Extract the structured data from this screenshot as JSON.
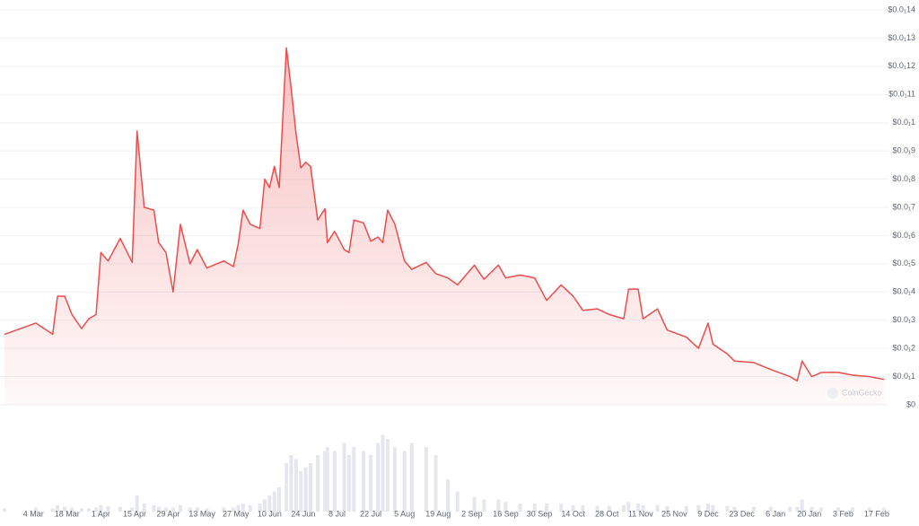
{
  "chart_data": {
    "type": "area",
    "watermark": "CoinGecko",
    "color": "#ec4c4c",
    "volume_color": "#e6e7ee",
    "grid": true,
    "xlim": [
      "21 Feb",
      "20 Feb"
    ],
    "ylim": [
      0,
      14
    ],
    "vlim": [
      0,
      100
    ],
    "yticks": [
      {
        "value": 14,
        "label": "$0.0₁14"
      },
      {
        "value": 13,
        "label": "$0.0₁13"
      },
      {
        "value": 12,
        "label": "$0.0₁12"
      },
      {
        "value": 11,
        "label": "$0.0₁11"
      },
      {
        "value": 10,
        "label": "$0.0₁1"
      },
      {
        "value": 9,
        "label": "$0.0₁9"
      },
      {
        "value": 8,
        "label": "$0.0₁8"
      },
      {
        "value": 7,
        "label": "$0.0₁7"
      },
      {
        "value": 6,
        "label": "$0.0₁6"
      },
      {
        "value": 5,
        "label": "$0.0₁5"
      },
      {
        "value": 4,
        "label": "$0.0₁4"
      },
      {
        "value": 3,
        "label": "$0.0₁3"
      },
      {
        "value": 2,
        "label": "$0.0₁2"
      },
      {
        "value": 1,
        "label": "$0.0₁1"
      },
      {
        "value": 0,
        "label": "$0"
      }
    ],
    "xticks": [
      "4 Mar",
      "18 Mar",
      "1 Apr",
      "15 Apr",
      "29 Apr",
      "13 May",
      "27 May",
      "10 Jun",
      "24 Jun",
      "8 Jul",
      "22 Jul",
      "5 Aug",
      "19 Aug",
      "2 Sep",
      "16 Sep",
      "30 Sep",
      "14 Oct",
      "28 Oct",
      "11 Nov",
      "25 Nov",
      "9 Dec",
      "23 Dec",
      "6 Jan",
      "20 Jan",
      "3 Feb",
      "17 Feb"
    ],
    "x": [
      "21 Feb",
      "5 Mar",
      "12 Mar",
      "14 Mar",
      "17 Mar",
      "20 Mar",
      "24 Mar",
      "27 Mar",
      "30 Mar",
      "1 Apr",
      "4 Apr",
      "9 Apr",
      "14 Apr",
      "16 Apr",
      "19 Apr",
      "23 Apr",
      "25 Apr",
      "28 Apr",
      "1 May",
      "4 May",
      "8 May",
      "11 May",
      "15 May",
      "22 May",
      "26 May",
      "28 May",
      "30 May",
      "2 Jun",
      "6 Jun",
      "8 Jun",
      "10 Jun",
      "12 Jun",
      "14 Jun",
      "17 Jun",
      "19 Jun",
      "21 Jun",
      "23 Jun",
      "25 Jun",
      "27 Jun",
      "30 Jun",
      "3 Jul",
      "4 Jul",
      "7 Jul",
      "11 Jul",
      "13 Jul",
      "15 Jul",
      "19 Jul",
      "22 Jul",
      "25 Jul",
      "27 Jul",
      "29 Jul",
      "1 Aug",
      "5 Aug",
      "8 Aug",
      "14 Aug",
      "18 Aug",
      "23 Aug",
      "27 Aug",
      "3 Sep",
      "7 Sep",
      "13 Sep",
      "16 Sep",
      "22 Sep",
      "28 Sep",
      "3 Oct",
      "9 Oct",
      "14 Oct",
      "18 Oct",
      "24 Oct",
      "29 Oct",
      "4 Nov",
      "6 Nov",
      "10 Nov",
      "12 Nov",
      "18 Nov",
      "22 Nov",
      "30 Nov",
      "5 Dec",
      "9 Dec",
      "11 Dec",
      "17 Dec",
      "20 Dec",
      "28 Dec",
      "4 Jan",
      "12 Jan",
      "15 Jan",
      "17 Jan",
      "21 Jan",
      "25 Jan",
      "1 Feb",
      "7 Feb",
      "14 Feb",
      "20 Feb"
    ],
    "values": [
      2.5,
      2.9,
      2.5,
      3.85,
      3.85,
      3.2,
      2.7,
      3.05,
      3.2,
      5.4,
      5.1,
      5.9,
      5.05,
      9.7,
      7.0,
      6.9,
      5.75,
      5.4,
      4.0,
      6.4,
      5.0,
      5.5,
      4.85,
      5.1,
      4.9,
      5.7,
      6.9,
      6.4,
      6.25,
      8.0,
      7.7,
      8.45,
      7.7,
      12.65,
      11.2,
      9.6,
      8.4,
      8.6,
      8.45,
      6.55,
      6.95,
      5.75,
      6.15,
      5.5,
      5.4,
      6.55,
      6.45,
      5.8,
      5.95,
      5.75,
      6.9,
      6.4,
      5.1,
      4.8,
      5.05,
      4.65,
      4.5,
      4.25,
      4.95,
      4.45,
      4.95,
      4.5,
      4.6,
      4.5,
      3.7,
      4.25,
      3.85,
      3.35,
      3.4,
      3.2,
      3.05,
      4.1,
      4.1,
      3.05,
      3.4,
      2.65,
      2.4,
      2.0,
      2.9,
      2.15,
      1.8,
      1.55,
      1.5,
      1.25,
      1.0,
      0.85,
      1.55,
      1.0,
      1.15,
      1.15,
      1.05,
      1.0,
      0.9
    ],
    "volume": [
      4,
      5,
      4,
      8,
      6,
      5,
      4,
      4,
      5,
      8,
      7,
      6,
      5,
      20,
      10,
      8,
      6,
      5,
      5,
      8,
      5,
      5,
      4,
      5,
      5,
      8,
      10,
      8,
      10,
      15,
      20,
      25,
      30,
      60,
      70,
      65,
      50,
      55,
      60,
      70,
      75,
      80,
      75,
      85,
      70,
      80,
      75,
      70,
      85,
      95,
      90,
      80,
      75,
      85,
      80,
      70,
      40,
      25,
      18,
      15,
      15,
      12,
      10,
      10,
      10,
      10,
      8,
      8,
      7,
      7,
      8,
      12,
      10,
      8,
      8,
      7,
      7,
      8,
      10,
      8,
      7,
      6,
      6,
      6,
      6,
      6,
      15,
      6,
      5,
      5,
      5,
      5,
      5
    ]
  }
}
